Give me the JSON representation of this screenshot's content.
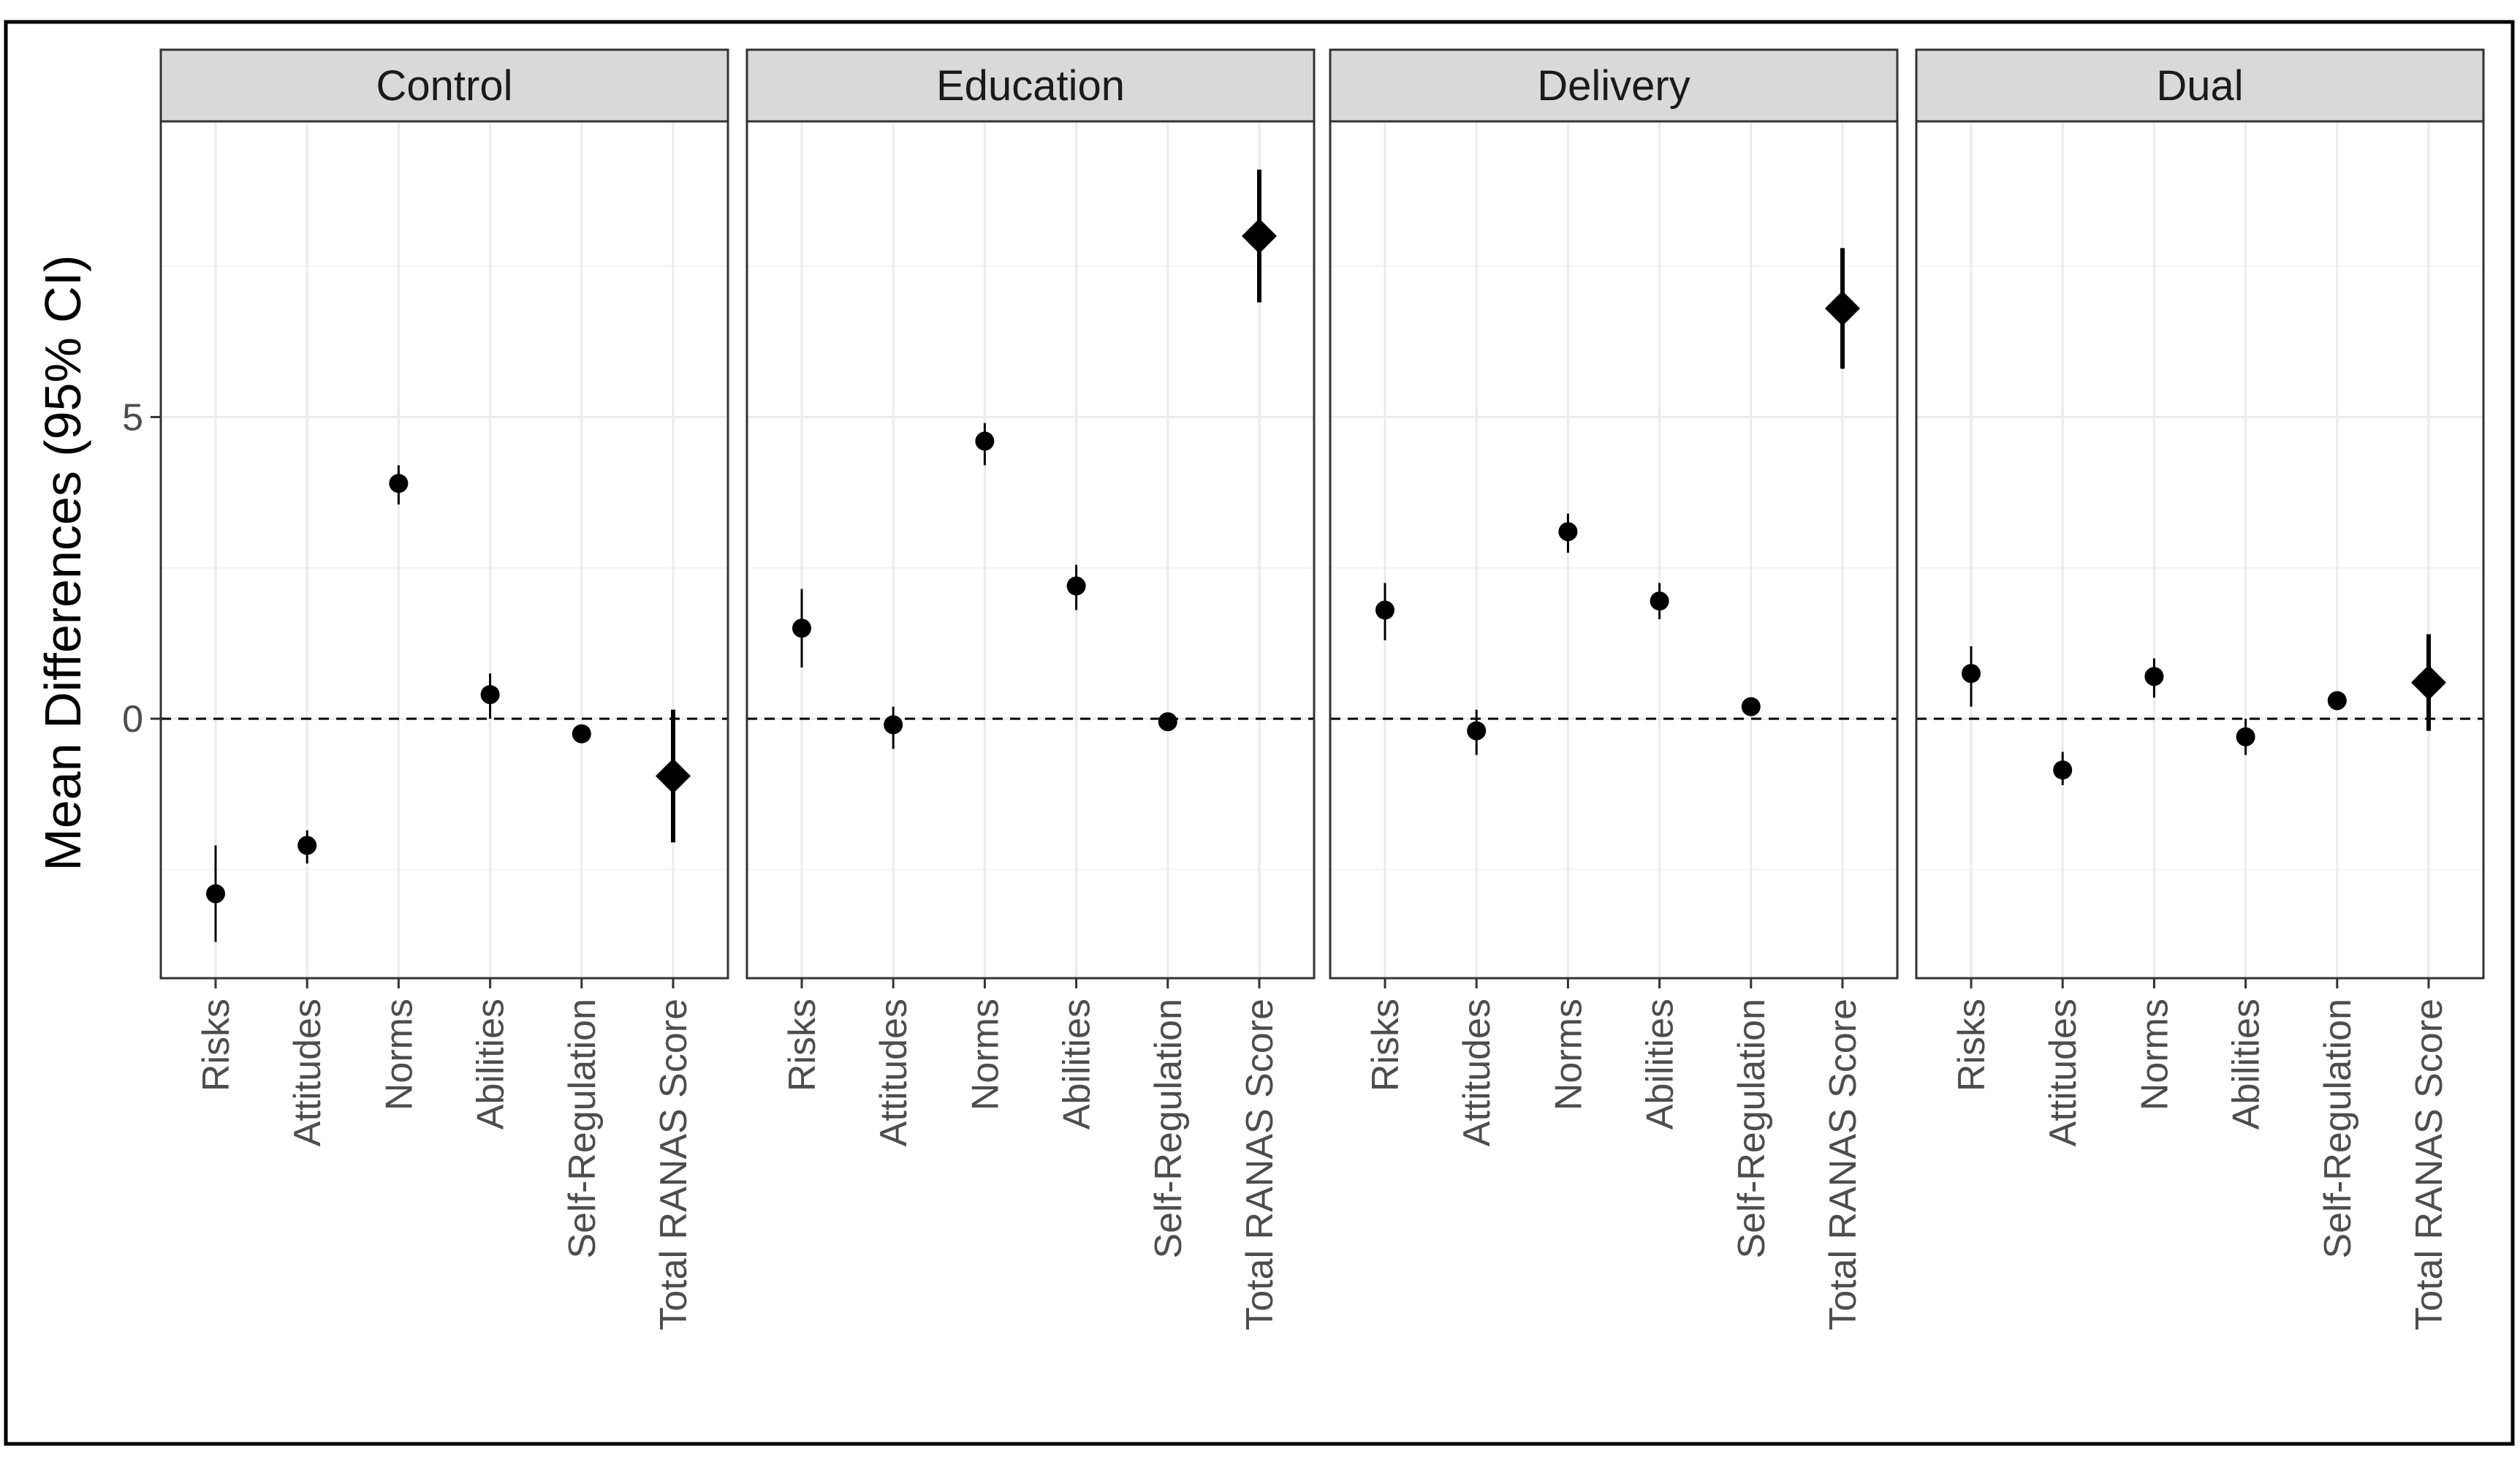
{
  "chart_data": {
    "type": "scatter",
    "subtype": "point-range faceted",
    "ylabel": "Mean Differences (95% CI)",
    "xlabel": "",
    "ylim": [
      -4.3,
      9.9
    ],
    "yticks": [
      0,
      5
    ],
    "reference_line": 0,
    "categories": [
      "Risks",
      "Attitudes",
      "Norms",
      "Abilities",
      "Self-Regulation",
      "Total RANAS Score"
    ],
    "panels": [
      {
        "name": "Control",
        "estimates": [
          -2.9,
          -2.1,
          3.9,
          0.4,
          -0.25,
          -0.95
        ],
        "lower": [
          -3.7,
          -2.4,
          3.55,
          0.0,
          -0.35,
          -2.05
        ],
        "upper": [
          -2.1,
          -1.85,
          4.2,
          0.75,
          -0.15,
          0.15
        ]
      },
      {
        "name": "Education",
        "estimates": [
          1.5,
          -0.1,
          4.6,
          2.2,
          -0.05,
          8.0
        ],
        "lower": [
          0.85,
          -0.5,
          4.2,
          1.8,
          -0.15,
          6.9
        ],
        "upper": [
          2.15,
          0.2,
          4.9,
          2.55,
          0.05,
          9.1
        ]
      },
      {
        "name": "Delivery",
        "estimates": [
          1.8,
          -0.2,
          3.1,
          1.95,
          0.2,
          6.8
        ],
        "lower": [
          1.3,
          -0.6,
          2.75,
          1.65,
          0.1,
          5.8
        ],
        "upper": [
          2.25,
          0.15,
          3.4,
          2.25,
          0.3,
          7.8
        ]
      },
      {
        "name": "Dual",
        "estimates": [
          0.75,
          -0.85,
          0.7,
          -0.3,
          0.3,
          0.6
        ],
        "lower": [
          0.2,
          -1.1,
          0.35,
          -0.6,
          0.2,
          -0.2
        ],
        "upper": [
          1.2,
          -0.55,
          1.0,
          0.0,
          0.4,
          1.4
        ]
      }
    ]
  }
}
